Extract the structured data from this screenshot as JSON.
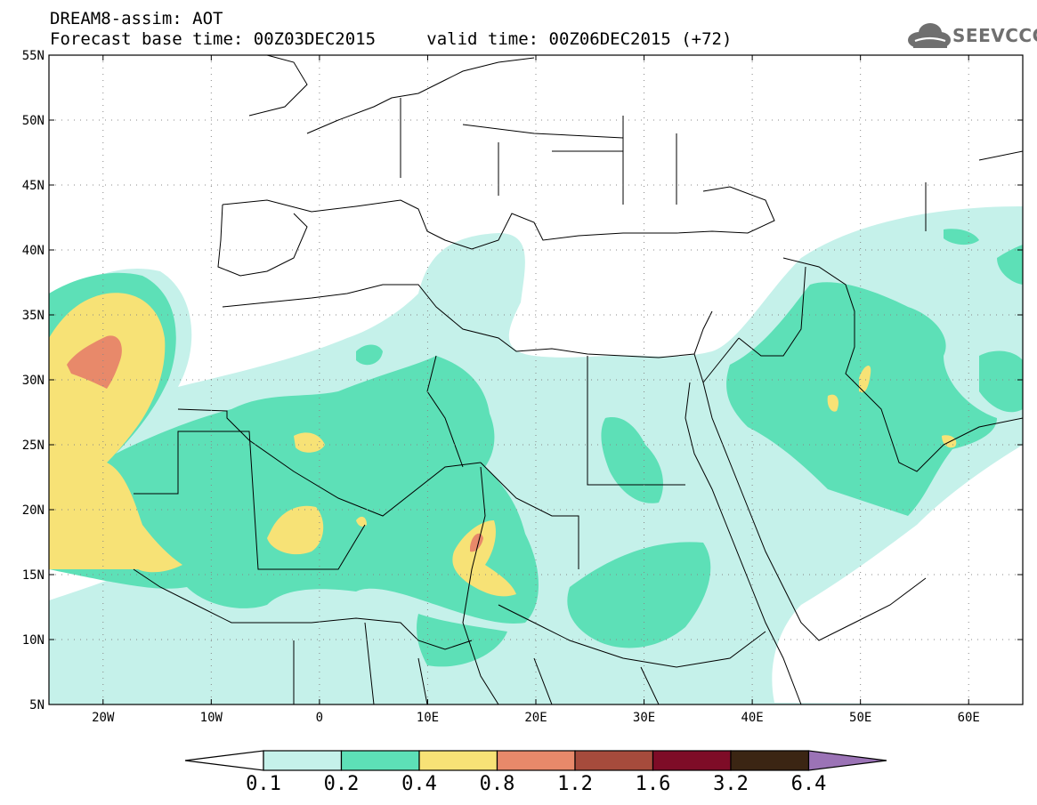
{
  "header": {
    "model_line": "DREAM8-assim: AOT",
    "base_label": "Forecast base time: 00Z03DEC2015",
    "valid_label": "valid time: 00Z06DEC2015 (+72)"
  },
  "logo": {
    "text": "SEEVCCC",
    "icon": "cloud-logo-icon"
  },
  "map": {
    "lon_range": [
      -25,
      65
    ],
    "lat_range": [
      5,
      55
    ],
    "lat_ticks": [
      {
        "value": 55,
        "label": "55N"
      },
      {
        "value": 50,
        "label": "50N"
      },
      {
        "value": 45,
        "label": "45N"
      },
      {
        "value": 40,
        "label": "40N"
      },
      {
        "value": 35,
        "label": "35N"
      },
      {
        "value": 30,
        "label": "30N"
      },
      {
        "value": 25,
        "label": "25N"
      },
      {
        "value": 20,
        "label": "20N"
      },
      {
        "value": 15,
        "label": "15N"
      },
      {
        "value": 10,
        "label": "10N"
      },
      {
        "value": 5,
        "label": "5N"
      }
    ],
    "lon_ticks": [
      {
        "value": -20,
        "label": "20W"
      },
      {
        "value": -10,
        "label": "10W"
      },
      {
        "value": 0,
        "label": "0"
      },
      {
        "value": 10,
        "label": "10E"
      },
      {
        "value": 20,
        "label": "20E"
      },
      {
        "value": 30,
        "label": "30E"
      },
      {
        "value": 40,
        "label": "40E"
      },
      {
        "value": 50,
        "label": "50E"
      },
      {
        "value": 60,
        "label": "60E"
      }
    ],
    "gridlines": "dotted",
    "level_colors": {
      "l1": "#c5f1ea",
      "l2": "#5de0b7",
      "l3": "#f7e276",
      "l4": "#e8896a",
      "l5": "#a64b3c"
    }
  },
  "colorbar": {
    "labels": [
      "0.1",
      "0.2",
      "0.4",
      "0.8",
      "1.2",
      "1.6",
      "3.2",
      "6.4"
    ],
    "colors": [
      "#c5f1ea",
      "#5de0b7",
      "#f7e276",
      "#e8896a",
      "#a64b3c",
      "#7e0c27",
      "#3b2513"
    ],
    "under_color": "#ffffff",
    "over_color": "#9b73b6"
  }
}
